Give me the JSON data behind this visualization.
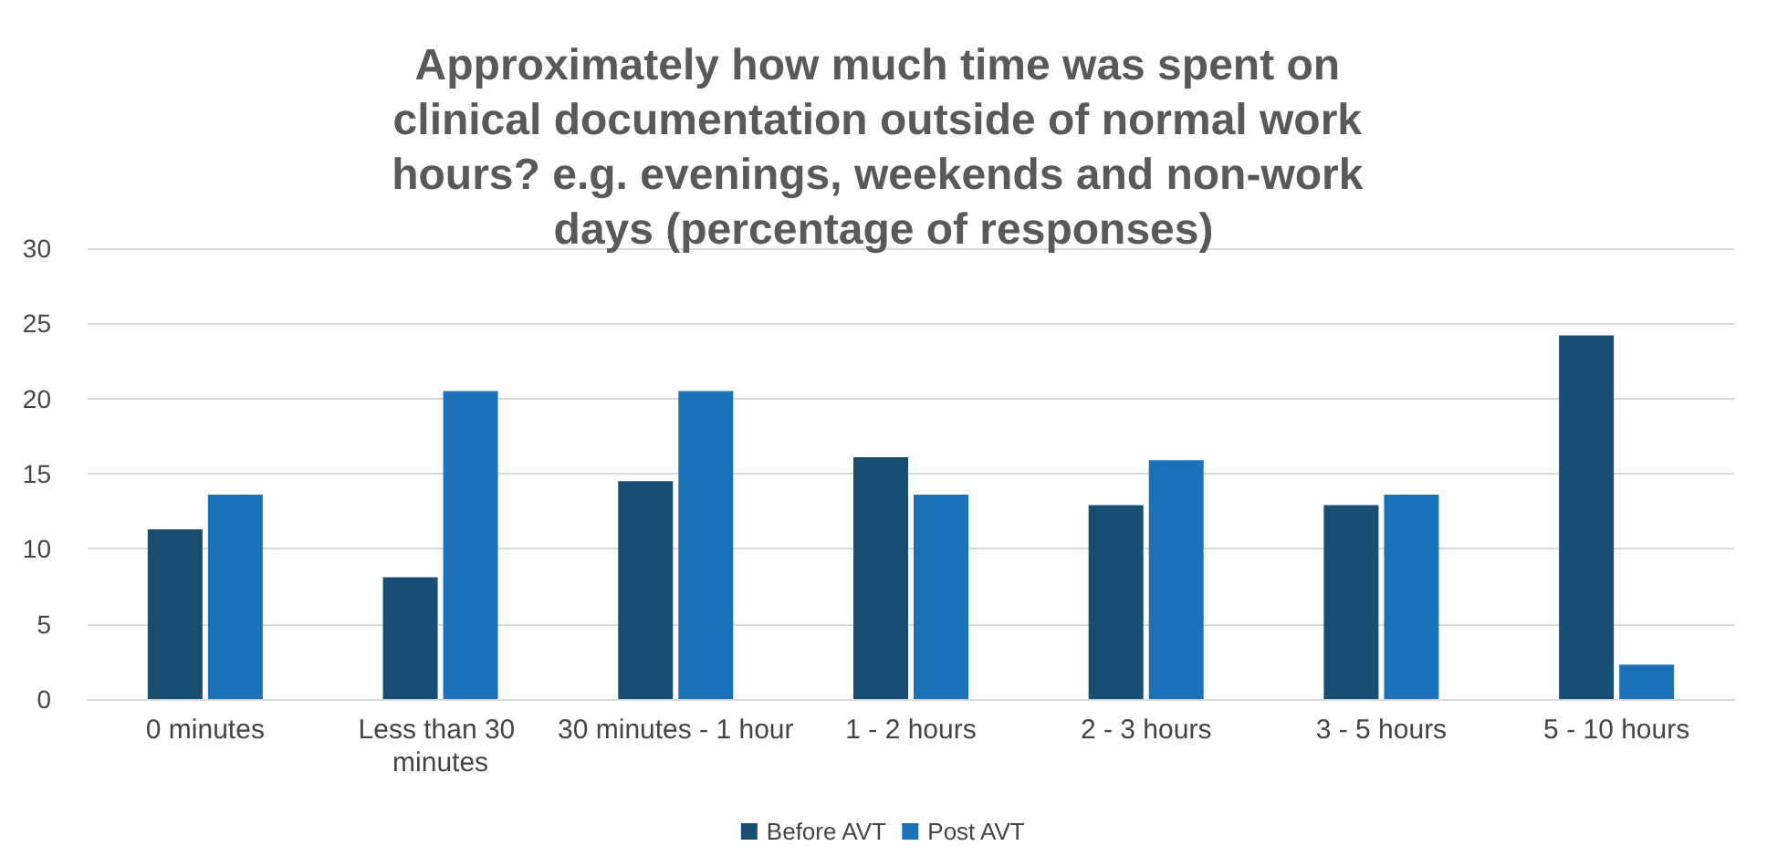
{
  "chart_data": {
    "type": "bar",
    "title": "Approximately how much time was spent on clinical documentation outside of normal work hours? e.g. evenings, weekends and non-work days (percentage of responses)",
    "categories": [
      "0 minutes",
      "Less than 30 minutes",
      "30 minutes - 1 hour",
      "1 - 2 hours",
      "2 - 3 hours",
      "3 - 5 hours",
      "5 - 10 hours"
    ],
    "series": [
      {
        "name": "Before AVT",
        "color": "#174e71",
        "values": [
          11.3,
          8.1,
          14.5,
          16.1,
          12.9,
          12.9,
          24.2
        ]
      },
      {
        "name": "Post AVT",
        "color": "#1c72b8",
        "values": [
          13.6,
          20.5,
          20.5,
          13.6,
          15.9,
          13.6,
          2.3
        ]
      }
    ],
    "ylim": [
      0,
      30
    ],
    "yticks": [
      0,
      5,
      10,
      15,
      20,
      25,
      30
    ],
    "grid": "y",
    "legend": "bottom"
  }
}
